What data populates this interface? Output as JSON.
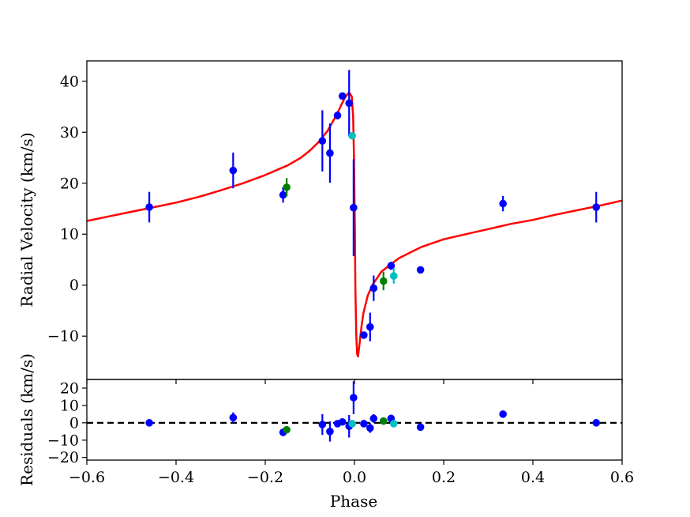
{
  "chart_data": [
    {
      "type": "scatter",
      "role": "main",
      "title": "",
      "xlabel": "",
      "ylabel": "Radial Velocity (km/s)",
      "xlim": [
        -0.6,
        0.6
      ],
      "ylim": [
        -18.5,
        44
      ],
      "xticks": [
        -0.6,
        -0.4,
        -0.2,
        0.0,
        0.2,
        0.4,
        0.6
      ],
      "xtick_labels_shown": false,
      "yticks": [
        -10,
        0,
        10,
        20,
        30,
        40
      ],
      "ytick_labels": [
        "−10",
        "0",
        "10",
        "20",
        "30",
        "40"
      ],
      "grid": false,
      "legend": "none",
      "series": [
        {
          "color": "#0000ff",
          "x": [
            -0.46,
            -0.272,
            -0.16,
            -0.072,
            -0.055,
            -0.038,
            -0.027,
            -0.012,
            -0.002,
            0.021,
            0.035,
            0.043,
            0.082,
            0.148,
            0.333,
            0.542
          ],
          "y": [
            15.3,
            22.5,
            17.7,
            28.3,
            25.9,
            33.3,
            37.1,
            35.7,
            15.2,
            -9.8,
            -8.2,
            -0.6,
            3.8,
            3.0,
            16.0,
            15.3
          ],
          "yerr": [
            3.0,
            3.5,
            1.5,
            6.0,
            5.8,
            0.8,
            0.6,
            6.5,
            9.5,
            0.5,
            2.8,
            2.5,
            0.8,
            0.7,
            1.5,
            3.0
          ]
        },
        {
          "color": "#008000",
          "x": [
            -0.152,
            0.065
          ],
          "y": [
            19.2,
            0.8
          ],
          "yerr": [
            1.8,
            1.8
          ]
        },
        {
          "color": "#00c0c0",
          "x": [
            -0.005,
            0.088
          ],
          "y": [
            29.3,
            1.8
          ],
          "yerr": [
            0.5,
            1.5
          ]
        }
      ],
      "model": {
        "color": "#ff0000",
        "label": "",
        "x": [
          -0.6,
          -0.55,
          -0.5,
          -0.45,
          -0.4,
          -0.35,
          -0.3,
          -0.25,
          -0.2,
          -0.15,
          -0.12,
          -0.1,
          -0.08,
          -0.06,
          -0.04,
          -0.03,
          -0.02,
          -0.012,
          -0.006,
          -0.003,
          -0.001,
          0.001,
          0.002,
          0.004,
          0.006,
          0.008,
          0.012,
          0.016,
          0.02,
          0.03,
          0.04,
          0.06,
          0.08,
          0.1,
          0.15,
          0.2,
          0.25,
          0.3,
          0.35,
          0.4,
          0.45,
          0.5,
          0.55,
          0.6
        ],
        "y": [
          12.6,
          13.5,
          14.4,
          15.3,
          16.2,
          17.3,
          18.6,
          20.0,
          21.6,
          23.5,
          25.0,
          26.4,
          28.1,
          30.3,
          33.4,
          35.3,
          37.0,
          37.8,
          37.0,
          33.0,
          25.0,
          10.0,
          0.0,
          -10.0,
          -13.5,
          -14.0,
          -11.0,
          -8.0,
          -5.5,
          -2.0,
          0.0,
          2.6,
          4.0,
          5.3,
          7.5,
          9.0,
          10.0,
          11.0,
          12.0,
          12.8,
          13.8,
          14.7,
          15.6,
          16.6
        ]
      }
    },
    {
      "type": "scatter",
      "role": "residuals",
      "title": "",
      "xlabel": "Phase",
      "ylabel": "Residuals (km/s)",
      "xlim": [
        -0.6,
        0.6
      ],
      "ylim": [
        -21.5,
        25
      ],
      "xticks": [
        -0.6,
        -0.4,
        -0.2,
        0.0,
        0.2,
        0.4,
        0.6
      ],
      "xtick_labels": [
        "−0.6",
        "−0.4",
        "−0.2",
        "0.0",
        "0.2",
        "0.4",
        "0.6"
      ],
      "yticks": [
        -20,
        -10,
        0,
        10,
        20
      ],
      "ytick_labels": [
        "−20",
        "−10",
        "0",
        "10",
        "20"
      ],
      "grid": false,
      "legend": "none",
      "zero_line": {
        "y": 0,
        "style": "dashed",
        "color": "#000000"
      },
      "series": [
        {
          "color": "#0000ff",
          "x": [
            -0.46,
            -0.272,
            -0.16,
            -0.072,
            -0.055,
            -0.038,
            -0.027,
            -0.012,
            -0.002,
            0.021,
            0.035,
            0.043,
            0.082,
            0.148,
            0.333,
            0.542
          ],
          "y": [
            0.0,
            3.0,
            -5.5,
            -1.0,
            -5.0,
            -0.5,
            0.5,
            -2.0,
            14.5,
            -0.5,
            -3.0,
            2.5,
            2.5,
            -2.5,
            5.0,
            0.0
          ],
          "yerr": [
            1.5,
            3.0,
            1.5,
            6.0,
            5.8,
            0.8,
            0.6,
            6.5,
            9.5,
            0.5,
            2.8,
            2.5,
            0.8,
            0.7,
            1.5,
            1.5
          ]
        },
        {
          "color": "#008000",
          "x": [
            -0.152,
            0.065
          ],
          "y": [
            -4.0,
            1.0
          ],
          "yerr": [
            1.8,
            1.8
          ]
        },
        {
          "color": "#00c0c0",
          "x": [
            -0.005,
            0.088
          ],
          "y": [
            -0.5,
            -0.5
          ],
          "yerr": [
            0.5,
            1.5
          ]
        }
      ]
    }
  ]
}
